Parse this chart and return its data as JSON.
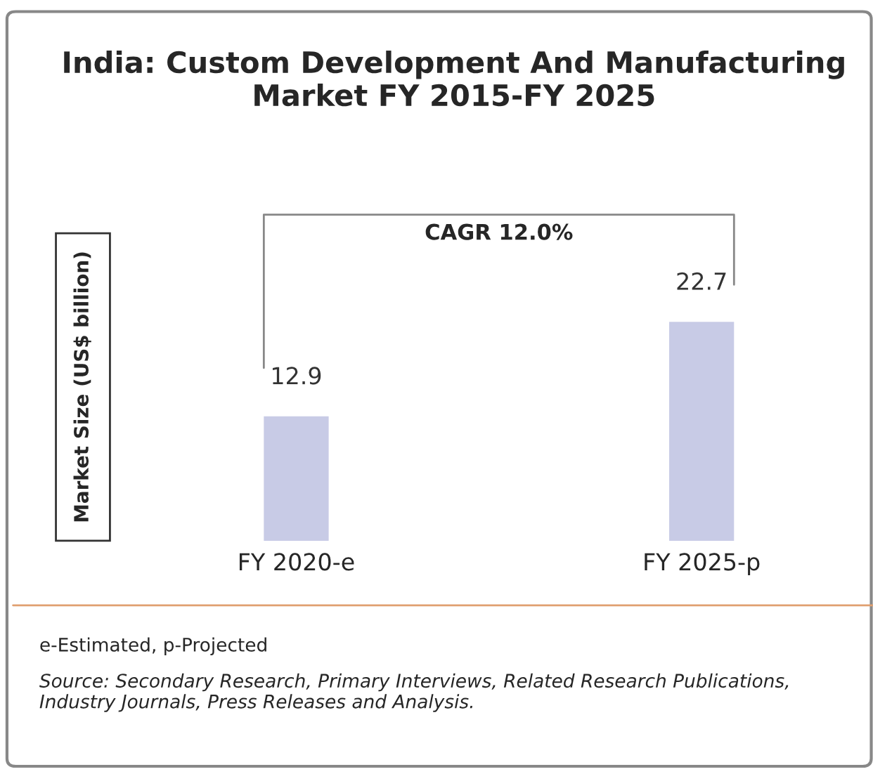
{
  "chart_data": {
    "type": "bar",
    "title": "India: Custom Development And Manufacturing Market FY 2015-FY 2025",
    "ylabel": "Market Size (US$ billion)",
    "categories": [
      "FY 2020-e",
      "FY 2025-p"
    ],
    "values": [
      12.9,
      22.7
    ],
    "color": "#c8cbe6",
    "data_labels": true,
    "grid": false,
    "annotations": [
      "CAGR 12.0%",
      "e-Estimated, p-Projected",
      "Source: Secondary Research, Primary Interviews, Related Research Publications, Industry Journals, Press Releases and Analysis."
    ]
  }
}
